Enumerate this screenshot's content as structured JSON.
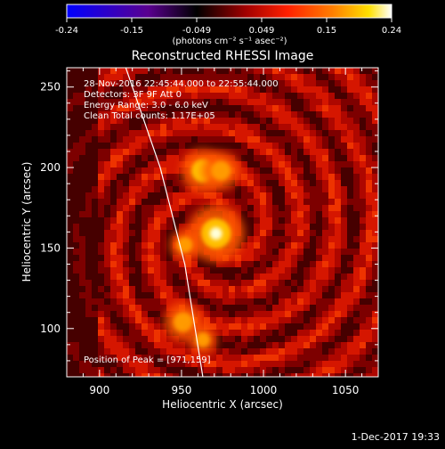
{
  "chart_data": {
    "type": "heatmap",
    "title": "Reconstructed RHESSI Image",
    "xlabel": "Heliocentric X (arcsec)",
    "ylabel": "Heliocentric Y (arcsec)",
    "xlim": [
      880,
      1070
    ],
    "ylim": [
      70,
      262
    ],
    "x_ticks": [
      900,
      950,
      1000,
      1050
    ],
    "y_ticks": [
      100,
      150,
      200,
      250
    ],
    "colorbar": {
      "min": -0.24,
      "max": 0.24,
      "ticks": [
        "-0.24",
        "-0.15",
        "-0.049",
        "0.049",
        "0.15",
        "0.24"
      ],
      "units_label": "(photons cm⁻² s⁻¹ asec⁻²)"
    },
    "annotations": [
      "28-Nov-2016 22:45:44.000 to 22:55:44.000",
      "Detectors: 3F 9F  Att 0",
      "Energy Range: 3.0 - 6.0 keV",
      "Clean     Total counts: 1.17E+05"
    ],
    "peak_label": "Position of Peak = [971,159]",
    "peak_position": [
      971,
      159
    ],
    "sources": [
      {
        "x": 971,
        "y": 159,
        "intensity": 0.24
      },
      {
        "x": 963,
        "y": 198,
        "intensity": 0.17
      },
      {
        "x": 974,
        "y": 198,
        "intensity": 0.14
      },
      {
        "x": 952,
        "y": 152,
        "intensity": 0.1
      },
      {
        "x": 951,
        "y": 104,
        "intensity": 0.14
      },
      {
        "x": 963,
        "y": 93,
        "intensity": 0.09
      }
    ],
    "limb_points": [
      [
        916,
        262
      ],
      [
        937,
        200
      ],
      [
        952,
        140
      ],
      [
        963,
        70
      ]
    ],
    "colormap": [
      "#0000ff",
      "#5a0090",
      "#000000",
      "#a00000",
      "#ff2000",
      "#ff8000",
      "#ffe000",
      "#ffffff"
    ]
  },
  "footer": {
    "date": "1-Dec-2017 19:33"
  }
}
